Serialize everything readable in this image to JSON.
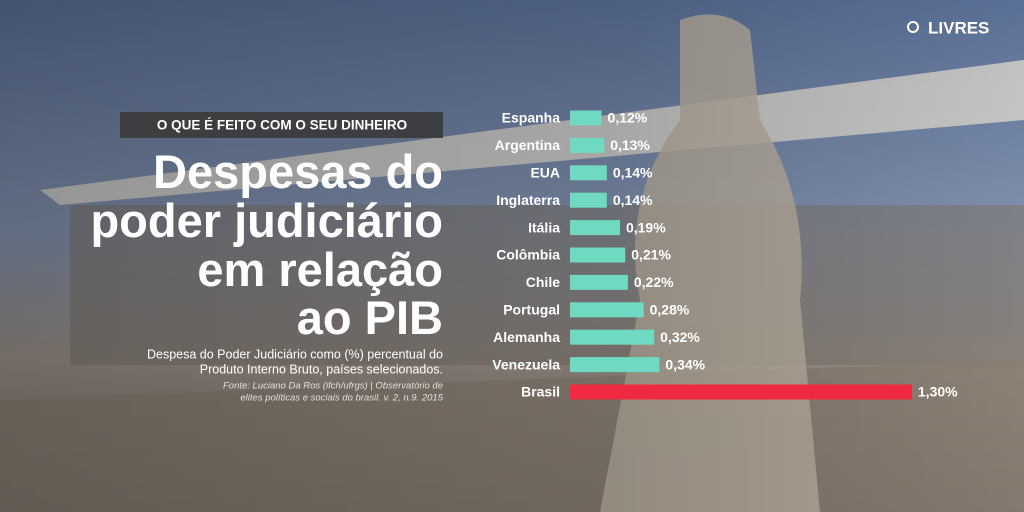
{
  "brand": "LIVRES",
  "kicker": "O QUE É FEITO COM O SEU DINHEIRO",
  "title": [
    "Despesas do",
    "poder judiciário",
    "em relação",
    "ao PIB"
  ],
  "subtitle": [
    "Despesa do Poder Judiciário como (%) percentual do",
    "Produto Interno Bruto, países selecionados."
  ],
  "source": [
    "Fonte: Luciano Da Ros (ifch/ufrgs) | Observatório de",
    "elites políticas e sociais do brasil. v. 2, n.9. 2015"
  ],
  "chart_data": {
    "type": "bar",
    "categories": [
      "Espanha",
      "Argentina",
      "EUA",
      "Inglaterra",
      "Itália",
      "Colômbia",
      "Chile",
      "Portugal",
      "Alemanha",
      "Venezuela",
      "Brasil"
    ],
    "values": [
      0.12,
      0.13,
      0.14,
      0.14,
      0.19,
      0.21,
      0.22,
      0.28,
      0.32,
      0.34,
      1.3
    ],
    "value_labels": [
      "0,12%",
      "0,13%",
      "0,14%",
      "0,14%",
      "0,19%",
      "0,21%",
      "0,22%",
      "0,28%",
      "0,32%",
      "0,34%",
      "1,30%"
    ],
    "colors": [
      "#6fd9c1",
      "#6fd9c1",
      "#6fd9c1",
      "#6fd9c1",
      "#6fd9c1",
      "#6fd9c1",
      "#6fd9c1",
      "#6fd9c1",
      "#6fd9c1",
      "#6fd9c1",
      "#f0293f"
    ]
  }
}
